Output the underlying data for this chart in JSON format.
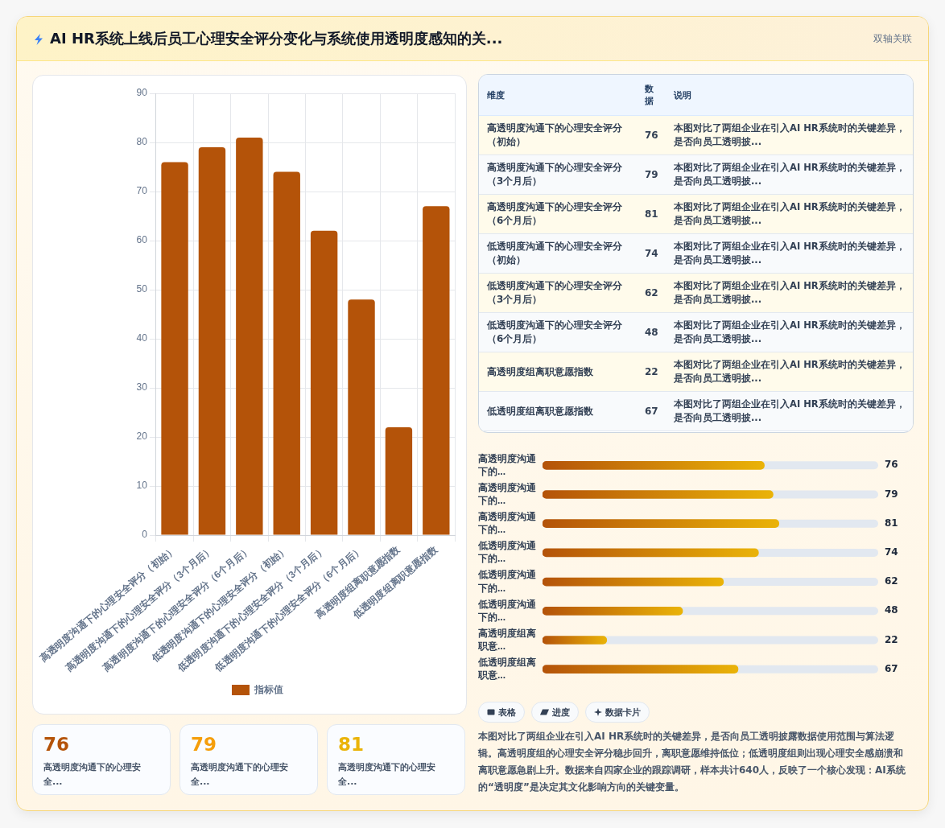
{
  "chart_data": [
    {
      "type": "bar",
      "title": "AI HR系统上线后员工心理安全评分变化与系统使用透明度感知的关...",
      "categories": [
        "高透明度沟通下的心理安全评分（初始）",
        "高透明度沟通下的心理安全评分（3个月后）",
        "高透明度沟通下的心理安全评分（6个月后）",
        "低透明度沟通下的心理安全评分（初始）",
        "低透明度沟通下的心理安全评分（3个月后）",
        "低透明度沟通下的心理安全评分（6个月后）",
        "高透明度组离职意愿指数",
        "低透明度组离职意愿指数"
      ],
      "series": [
        {
          "name": "指标值",
          "color": "#b45309",
          "values": [
            76,
            79,
            81,
            74,
            62,
            48,
            22,
            67
          ]
        }
      ],
      "ylim": [
        0,
        90
      ],
      "yticks": [
        0,
        10,
        20,
        30,
        40,
        50,
        60,
        70,
        80,
        90
      ],
      "grid": true,
      "legend": "bottom",
      "annotations": [
        "双轴关联",
        "本图对比了两组企业在引入AI HR系统时的关键差异，是否向员工透明披露数据使用范围与算法逻辑。高透明度组的心理安全评分稳步回升，离职意愿维持低位；低透明度组则出现心理安全感崩溃和离职意愿急剧上升。数据来自四家企业的跟踪调研，样本共计640人，反映了一个核心发现：AI系统的“透明度”是决定其文化影响方向的关键变量。"
      ]
    },
    {
      "type": "other",
      "categories": [
        "高透明度沟通下的心理安全评分（初始）",
        "高透明度沟通下的心理安全评分（3个月后）",
        "高透明度沟通下的心理安全评分（6个月后）",
        "低透明度沟通下的心理安全评分（初始）",
        "低透明度沟通下的心理安全评分（3个月后）",
        "低透明度沟通下的心理安全评分（6个月后）",
        "高透明度组离职意愿指数",
        "低透明度组离职意愿指数"
      ],
      "values": [
        76,
        79,
        81,
        74,
        62,
        48,
        22,
        67
      ],
      "data_labels": true,
      "annotations": [
        "维度",
        "数据",
        "说明",
        "本图对比了两组企业在引入AI HR系统时的关键差异，是否向员工透明披...",
        "本图对比了两组企业在引入AI HR系统时的关键差异，是否向员工透明披...",
        "本图对比了两组企业在引入AI HR系统时的关键差异，是否向员工透明披...",
        "本图对比了两组企业在引入AI HR系统时的关键差异，是否向员工透明披...",
        "本图对比了两组企业在引入AI HR系统时的关键差异，是否向员工透明披...",
        "本图对比了两组企业在引入AI HR系统时的关键差异，是否向员工透明披...",
        "本图对比了两组企业在引入AI HR系统时的关键差异，是否向员工透明披...",
        "本图对比了两组企业在引入AI HR系统时的关键差异，是否向员工透明披..."
      ]
    },
    {
      "type": "bar",
      "orientation": "horizontal",
      "categories": [
        "高透明度沟通下的...",
        "高透明度沟通下的...",
        "高透明度沟通下的...",
        "低透明度沟通下的...",
        "低透明度沟通下的...",
        "低透明度沟通下的...",
        "高透明度组离职意...",
        "低透明度组离职意..."
      ],
      "series": [
        {
          "color": "#b45309",
          "values": [
            76,
            79,
            81,
            74,
            62,
            48,
            22,
            67
          ]
        }
      ],
      "xlim": [
        0,
        115
      ],
      "data_labels": true
    },
    {
      "type": "other",
      "categories": [
        "高透明度沟通下的心理安全...",
        "高透明度沟通下的心理安全...",
        "高透明度沟通下的心理安全..."
      ],
      "values": [
        76,
        79,
        81
      ],
      "data_labels": true
    },
    {
      "type": "other",
      "annotations": [
        "表格",
        "进度",
        "数据卡片"
      ]
    }
  ]
}
